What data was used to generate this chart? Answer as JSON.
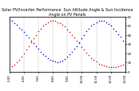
{
  "title": "Solar PV/Inverter Performance  Sun Altitude Angle & Sun Incidence Angle on PV Panels",
  "bg_color": "#ffffff",
  "grid_color": "#888888",
  "blue_x": [
    0,
    1,
    2,
    3,
    4,
    5,
    6,
    7,
    8,
    9,
    10,
    11,
    12,
    13,
    14,
    15,
    16,
    17,
    18,
    19,
    20,
    21,
    22,
    23,
    24,
    25,
    26,
    27,
    28,
    29,
    30,
    31,
    32,
    33,
    34,
    35,
    36,
    37,
    38,
    39,
    40,
    41,
    42,
    43,
    44,
    45,
    46,
    47,
    48
  ],
  "blue_y": [
    55,
    55,
    53,
    51,
    48,
    46,
    43,
    40,
    37,
    34,
    31,
    28,
    25,
    22,
    19,
    17,
    15,
    13,
    12,
    11,
    10,
    11,
    12,
    14,
    16,
    19,
    22,
    25,
    28,
    32,
    36,
    40,
    44,
    47,
    50,
    52,
    54,
    55,
    55,
    55,
    54,
    52,
    50,
    47,
    44,
    41,
    38,
    34,
    30
  ],
  "red_x": [
    0,
    1,
    2,
    3,
    4,
    5,
    6,
    7,
    8,
    9,
    10,
    11,
    12,
    13,
    14,
    15,
    16,
    17,
    18,
    19,
    20,
    21,
    22,
    23,
    24,
    25,
    26,
    27,
    28,
    29,
    30,
    31,
    32,
    33,
    34,
    35,
    36,
    37,
    38,
    39,
    40,
    41,
    42,
    43,
    44,
    45,
    46,
    47,
    48
  ],
  "red_y": [
    5,
    6,
    8,
    10,
    13,
    16,
    20,
    24,
    28,
    32,
    36,
    40,
    44,
    47,
    50,
    52,
    54,
    55,
    55,
    55,
    54,
    53,
    51,
    49,
    46,
    43,
    40,
    37,
    34,
    31,
    27,
    24,
    21,
    18,
    15,
    13,
    11,
    9,
    8,
    7,
    6,
    5,
    5,
    5,
    5,
    6,
    7,
    8,
    9
  ],
  "ylim": [
    0,
    60
  ],
  "xlim": [
    0,
    48
  ],
  "yticks_right": [
    0,
    10,
    20,
    30,
    40,
    50,
    60
  ],
  "xtick_positions": [
    0,
    6,
    12,
    18,
    24,
    30,
    36,
    42,
    48
  ],
  "xtick_labels": [
    "5:00",
    "6:00",
    "7:00",
    "8:00",
    "9:00",
    "10:00",
    "11:00",
    "12:00",
    "13:00"
  ],
  "title_fontsize": 3.5,
  "tick_fontsize": 2.8,
  "dot_size": 1.2,
  "blue_color": "#0000dd",
  "red_color": "#dd0000"
}
